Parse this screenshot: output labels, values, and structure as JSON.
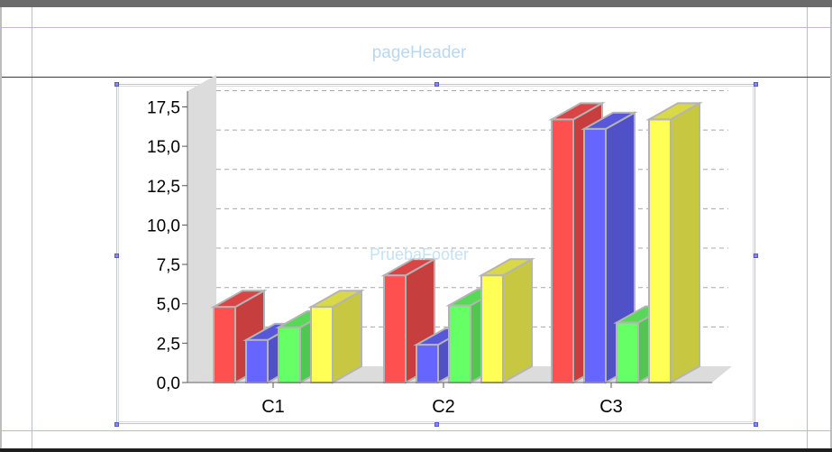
{
  "report": {
    "page_header_label": "pageHeader",
    "footer_overlay_label": "PruebaFooter"
  },
  "chart_data": {
    "type": "bar",
    "categories": [
      "C1",
      "C2",
      "C3"
    ],
    "series": [
      {
        "values": [
          4.8,
          6.8,
          16.7
        ],
        "color": "#ff5050"
      },
      {
        "values": [
          2.7,
          2.4,
          16.1
        ],
        "color": "#6666ff"
      },
      {
        "values": [
          3.5,
          4.9,
          3.8
        ],
        "color": "#66ff66"
      },
      {
        "values": [
          4.8,
          6.8,
          16.7
        ],
        "color": "#ffff55"
      }
    ],
    "ylim": [
      0,
      18.5
    ],
    "yticks": [
      {
        "value": 0,
        "label": "0,0"
      },
      {
        "value": 2.5,
        "label": "2,5"
      },
      {
        "value": 5,
        "label": "5,0"
      },
      {
        "value": 7.5,
        "label": "7,5"
      },
      {
        "value": 10,
        "label": "10,0"
      },
      {
        "value": 12.5,
        "label": "12,5"
      },
      {
        "value": 15,
        "label": "15,0"
      },
      {
        "value": 17.5,
        "label": "17,5"
      }
    ],
    "grid": true,
    "grid_style": "dashed",
    "render_style": "3d"
  }
}
